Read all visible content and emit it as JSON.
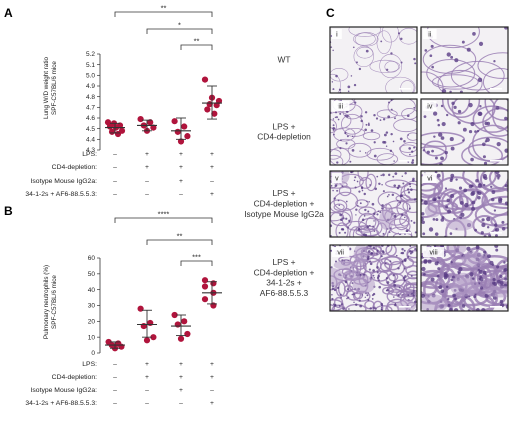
{
  "panel_labels": {
    "a": "A",
    "b": "B",
    "c": "C"
  },
  "colors": {
    "dot": "#b0143c",
    "tissue": "#9a7fb4",
    "airspace": "#f3f1f4",
    "bar": "#333333"
  },
  "treatment_rows": {
    "labels": [
      "LPS:",
      "CD4-depletion:",
      "Isotype Mouse IgG2a:",
      "34-1-2s + AF6-88.5.5.3:"
    ],
    "signs": [
      [
        "–",
        "+",
        "+",
        "+"
      ],
      [
        "–",
        "+",
        "+",
        "+"
      ],
      [
        "–",
        "–",
        "+",
        "–"
      ],
      [
        "–",
        "–",
        "–",
        "+"
      ]
    ]
  },
  "chart_data": [
    {
      "type": "scatter",
      "panel": "A",
      "ylabel": "Lung W/D weight ratio SPF-C57BL/6 mice",
      "ylabel_lines": [
        "Lung W/D weight ratio",
        "SPF-C57BL/6 mice"
      ],
      "ylim": [
        4.3,
        5.2
      ],
      "yticks": [
        "4.3",
        "4.4",
        "4.5",
        "4.6",
        "4.7",
        "4.8",
        "4.9",
        "5.0",
        "5.1",
        "5.2"
      ],
      "groups": [
        {
          "points": [
            4.56,
            4.55,
            4.53,
            4.52,
            4.51,
            4.48,
            4.47,
            4.45
          ],
          "mean": 4.51,
          "sd_low": 4.46,
          "sd_high": 4.55
        },
        {
          "points": [
            4.59,
            4.56,
            4.53,
            4.51,
            4.48
          ],
          "mean": 4.53,
          "sd_low": 4.48,
          "sd_high": 4.58
        },
        {
          "points": [
            4.57,
            4.52,
            4.47,
            4.43,
            4.38
          ],
          "mean": 4.48,
          "sd_low": 4.4,
          "sd_high": 4.6
        },
        {
          "points": [
            4.96,
            4.79,
            4.76,
            4.73,
            4.72,
            4.68,
            4.64
          ],
          "mean": 4.74,
          "sd_low": 4.59,
          "sd_high": 4.9
        }
      ],
      "significance": [
        {
          "from": 0,
          "to": 3,
          "label": "**"
        },
        {
          "from": 1,
          "to": 3,
          "label": "*"
        },
        {
          "from": 2,
          "to": 3,
          "label": "**"
        }
      ]
    },
    {
      "type": "scatter",
      "panel": "B",
      "ylabel": "Pulmonary neutrophils (%) SPF-C57BL/6 mice",
      "ylabel_lines": [
        "Pulmonary neutrophils (%)",
        "SPF-C57BL/6 mice"
      ],
      "ylim": [
        0,
        60
      ],
      "yticks": [
        "0",
        "10",
        "20",
        "30",
        "40",
        "50",
        "60"
      ],
      "groups": [
        {
          "points": [
            7,
            6,
            5,
            4,
            3
          ],
          "mean": 5,
          "sd_low": 3,
          "sd_high": 7
        },
        {
          "points": [
            28,
            19,
            17,
            10,
            8
          ],
          "mean": 18,
          "sd_low": 10,
          "sd_high": 27
        },
        {
          "points": [
            24,
            20,
            18,
            12,
            9
          ],
          "mean": 17,
          "sd_low": 11,
          "sd_high": 24
        },
        {
          "points": [
            46,
            44,
            42,
            38,
            34,
            30
          ],
          "mean": 38,
          "sd_low": 31,
          "sd_high": 45
        }
      ],
      "significance": [
        {
          "from": 0,
          "to": 3,
          "label": "****"
        },
        {
          "from": 1,
          "to": 3,
          "label": "**"
        },
        {
          "from": 2,
          "to": 3,
          "label": "***"
        }
      ]
    }
  ],
  "histology": {
    "conditions": [
      [
        "WT"
      ],
      [
        "LPS +",
        "CD4-depletion"
      ],
      [
        "LPS +",
        "CD4-depletion +",
        "Isotype Mouse  IgG2a"
      ],
      [
        "LPS +",
        "CD4-depletion +",
        "34-1-2s +",
        "AF6-88.5.5.3"
      ]
    ],
    "images": [
      [
        "i",
        "ii"
      ],
      [
        "iii",
        "iv"
      ],
      [
        "v",
        "vi"
      ],
      [
        "vii",
        "viii"
      ]
    ]
  }
}
